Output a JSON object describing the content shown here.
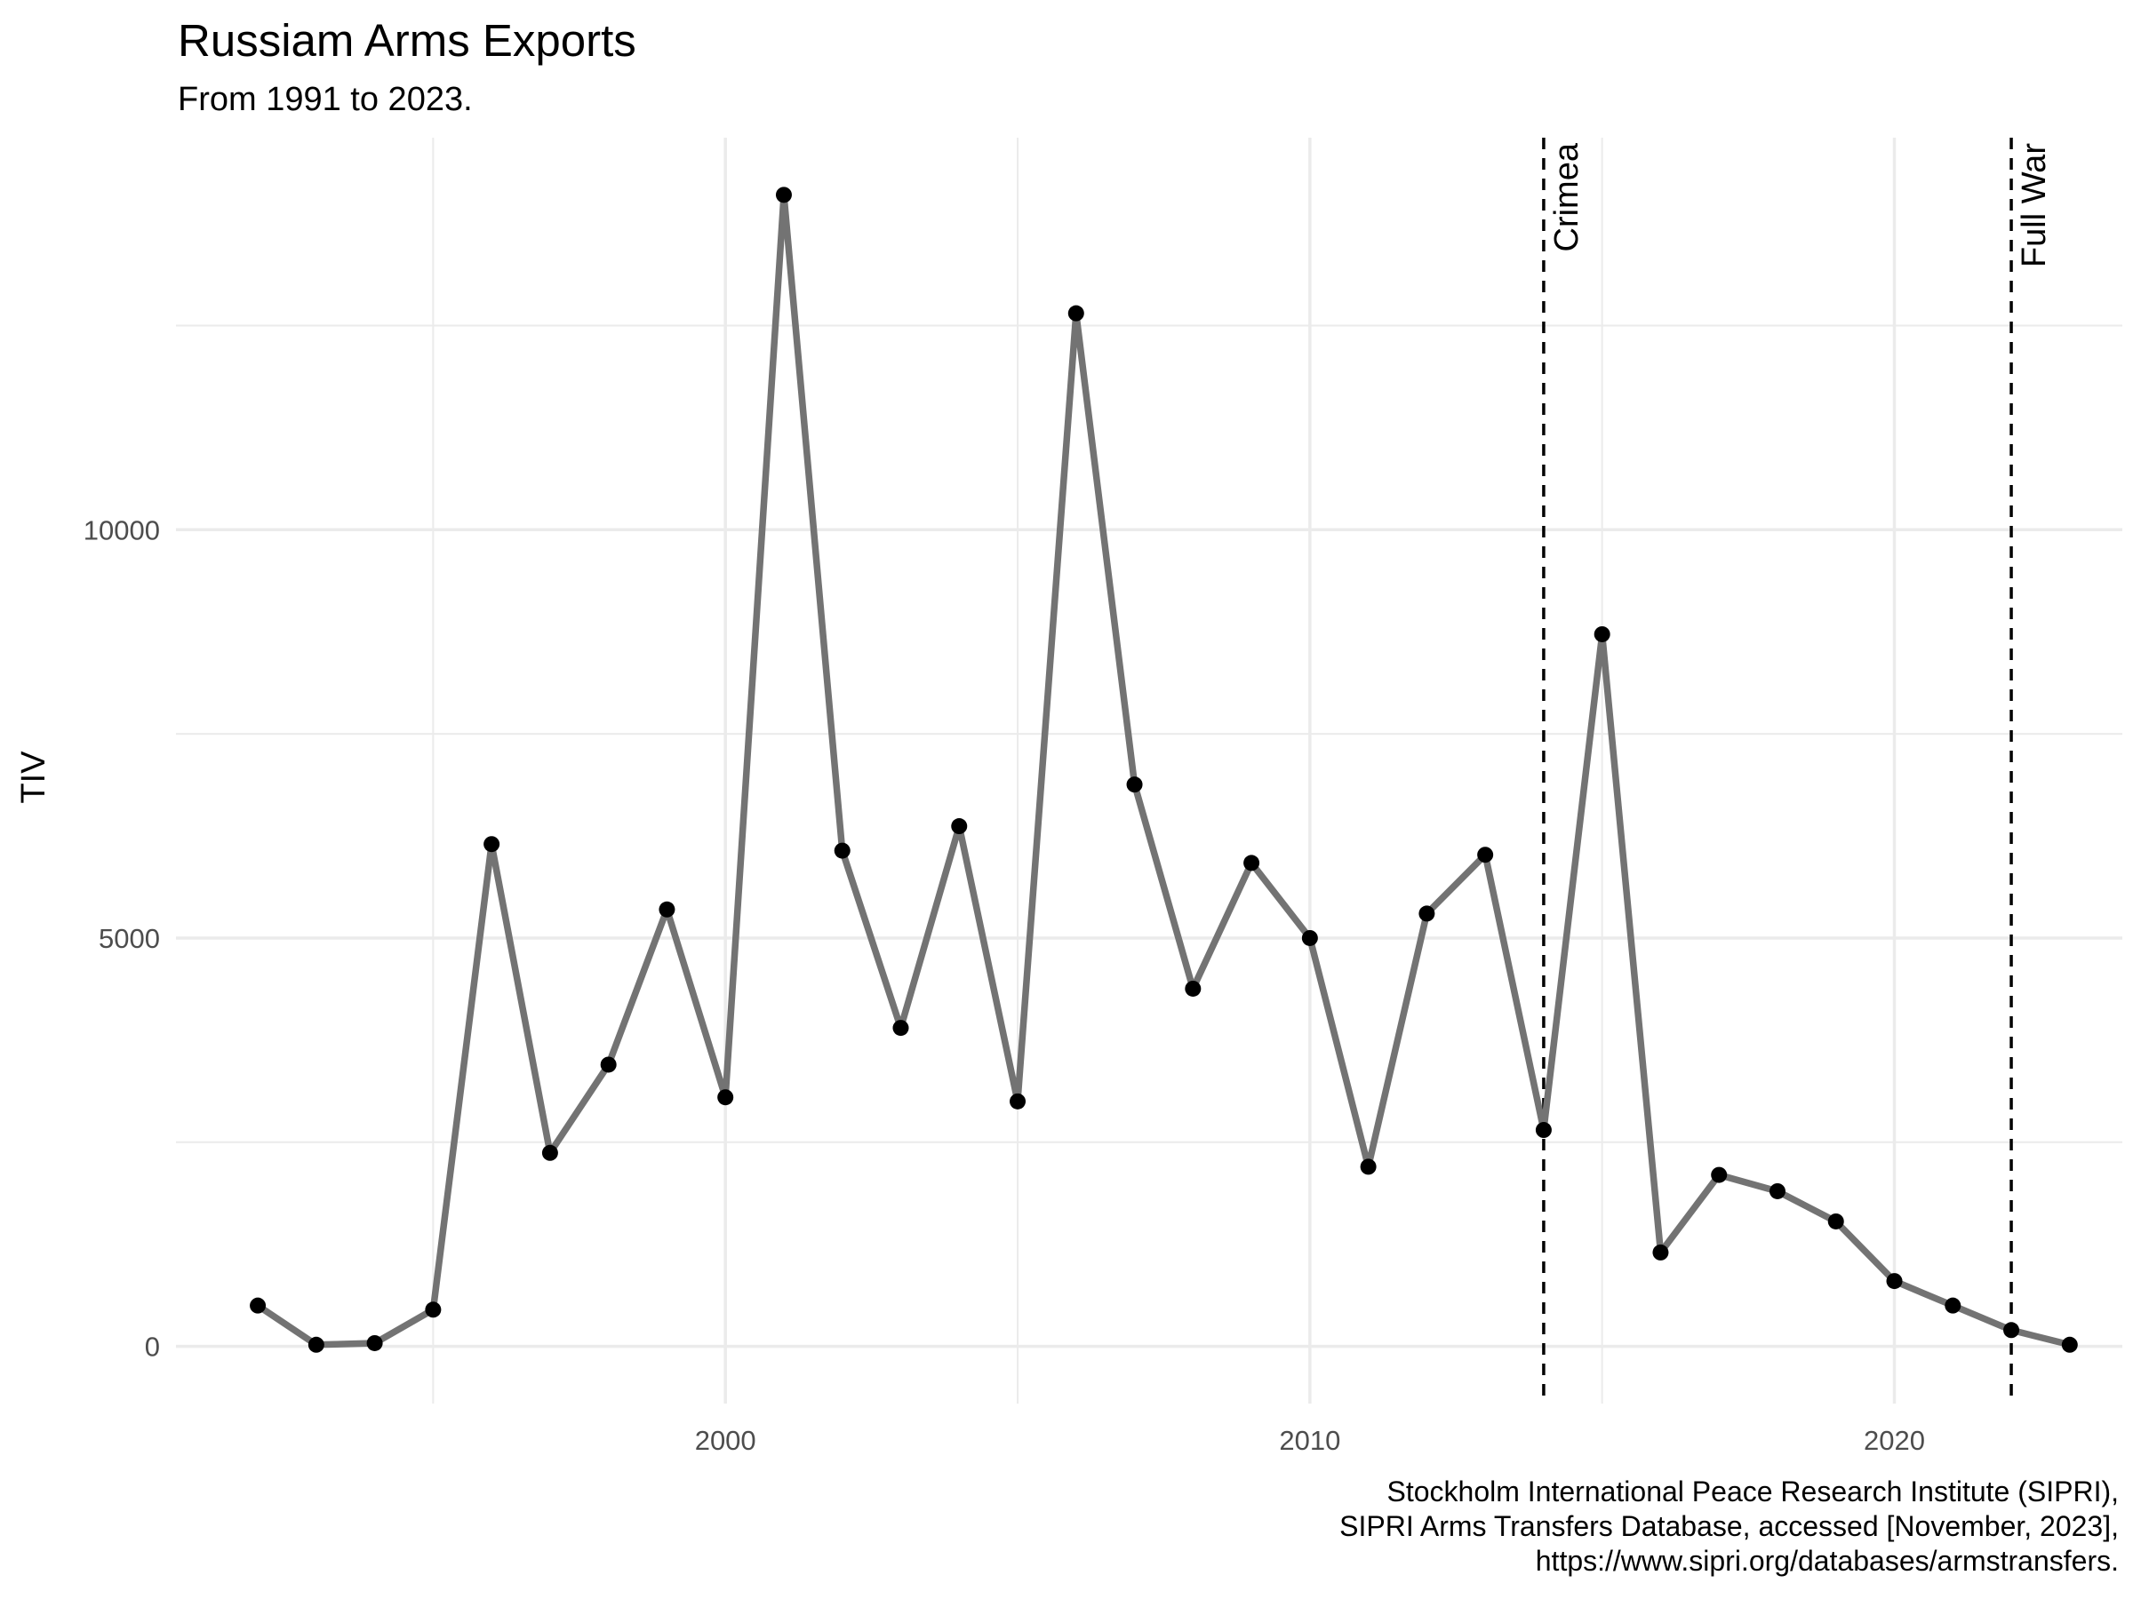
{
  "chart_data": {
    "type": "line",
    "title": "Russiam Arms Exports",
    "subtitle": "From 1991 to 2023.",
    "xlabel": "",
    "ylabel": "TIV",
    "x": [
      1992,
      1993,
      1994,
      1995,
      1996,
      1997,
      1998,
      1999,
      2000,
      2001,
      2002,
      2003,
      2004,
      2005,
      2006,
      2007,
      2008,
      2009,
      2010,
      2011,
      2012,
      2013,
      2014,
      2015,
      2016,
      2017,
      2018,
      2019,
      2020,
      2021,
      2022,
      2023
    ],
    "series": [
      {
        "values": [
          500,
          20,
          40,
          450,
          6150,
          2370,
          3450,
          5350,
          3050,
          14100,
          6070,
          3900,
          6370,
          3000,
          12650,
          6880,
          4380,
          5920,
          5000,
          2200,
          5300,
          6020,
          2650,
          8720,
          1150,
          2100,
          1900,
          1530,
          800,
          500,
          200,
          20
        ]
      }
    ],
    "xlim": [
      1990.6,
      2023.9
    ],
    "ylim": [
      -700,
      14800
    ],
    "x_ticks": [
      2000,
      2010,
      2020
    ],
    "x_tick_labels": [
      "2000",
      "2010",
      "2020"
    ],
    "y_ticks": [
      0,
      5000,
      10000
    ],
    "y_tick_labels": [
      "0",
      "5000",
      "10000"
    ],
    "grid": true,
    "legend": "none",
    "annotations": [
      {
        "x": 2014,
        "label": "Crimea"
      },
      {
        "x": 2022,
        "label": "Full War"
      }
    ],
    "caption": [
      "Stockholm International Peace Research Institute (SIPRI),",
      "SIPRI Arms Transfers Database, accessed [November, 2023],",
      "https://www.sipri.org/databases/armstransfers."
    ],
    "colors": {
      "line": "#737373",
      "point": "#000000",
      "grid": "#ebebeb",
      "vline": "#000000"
    }
  }
}
